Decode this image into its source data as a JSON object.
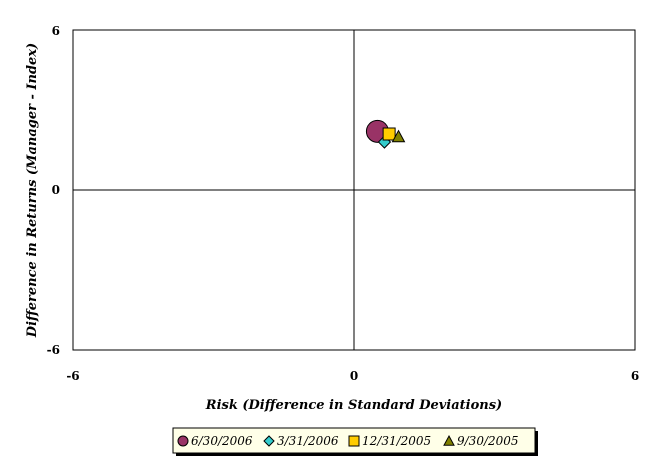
{
  "chart_data": {
    "type": "scatter",
    "xlabel": "Risk (Difference in Standard Deviations)",
    "ylabel": "Difference in Returns (Manager - Index)",
    "xlim": [
      -6,
      6
    ],
    "ylim": [
      -6,
      6
    ],
    "x_ticks": [
      "-6",
      "0",
      "6"
    ],
    "y_ticks": [
      "-6",
      "0",
      "6"
    ],
    "grid": false,
    "legend_position": "bottom",
    "series": [
      {
        "name": "6/30/2006",
        "marker": "circle",
        "color": "#993366",
        "x": 0.5,
        "y": 2.2
      },
      {
        "name": "3/31/2006",
        "marker": "diamond",
        "color": "#33CCCC",
        "x": 0.65,
        "y": 1.8
      },
      {
        "name": "12/31/2005",
        "marker": "square",
        "color": "#FFCC00",
        "x": 0.75,
        "y": 2.1
      },
      {
        "name": "9/30/2005",
        "marker": "triangle",
        "color": "#808000",
        "x": 0.95,
        "y": 2.0
      }
    ]
  }
}
